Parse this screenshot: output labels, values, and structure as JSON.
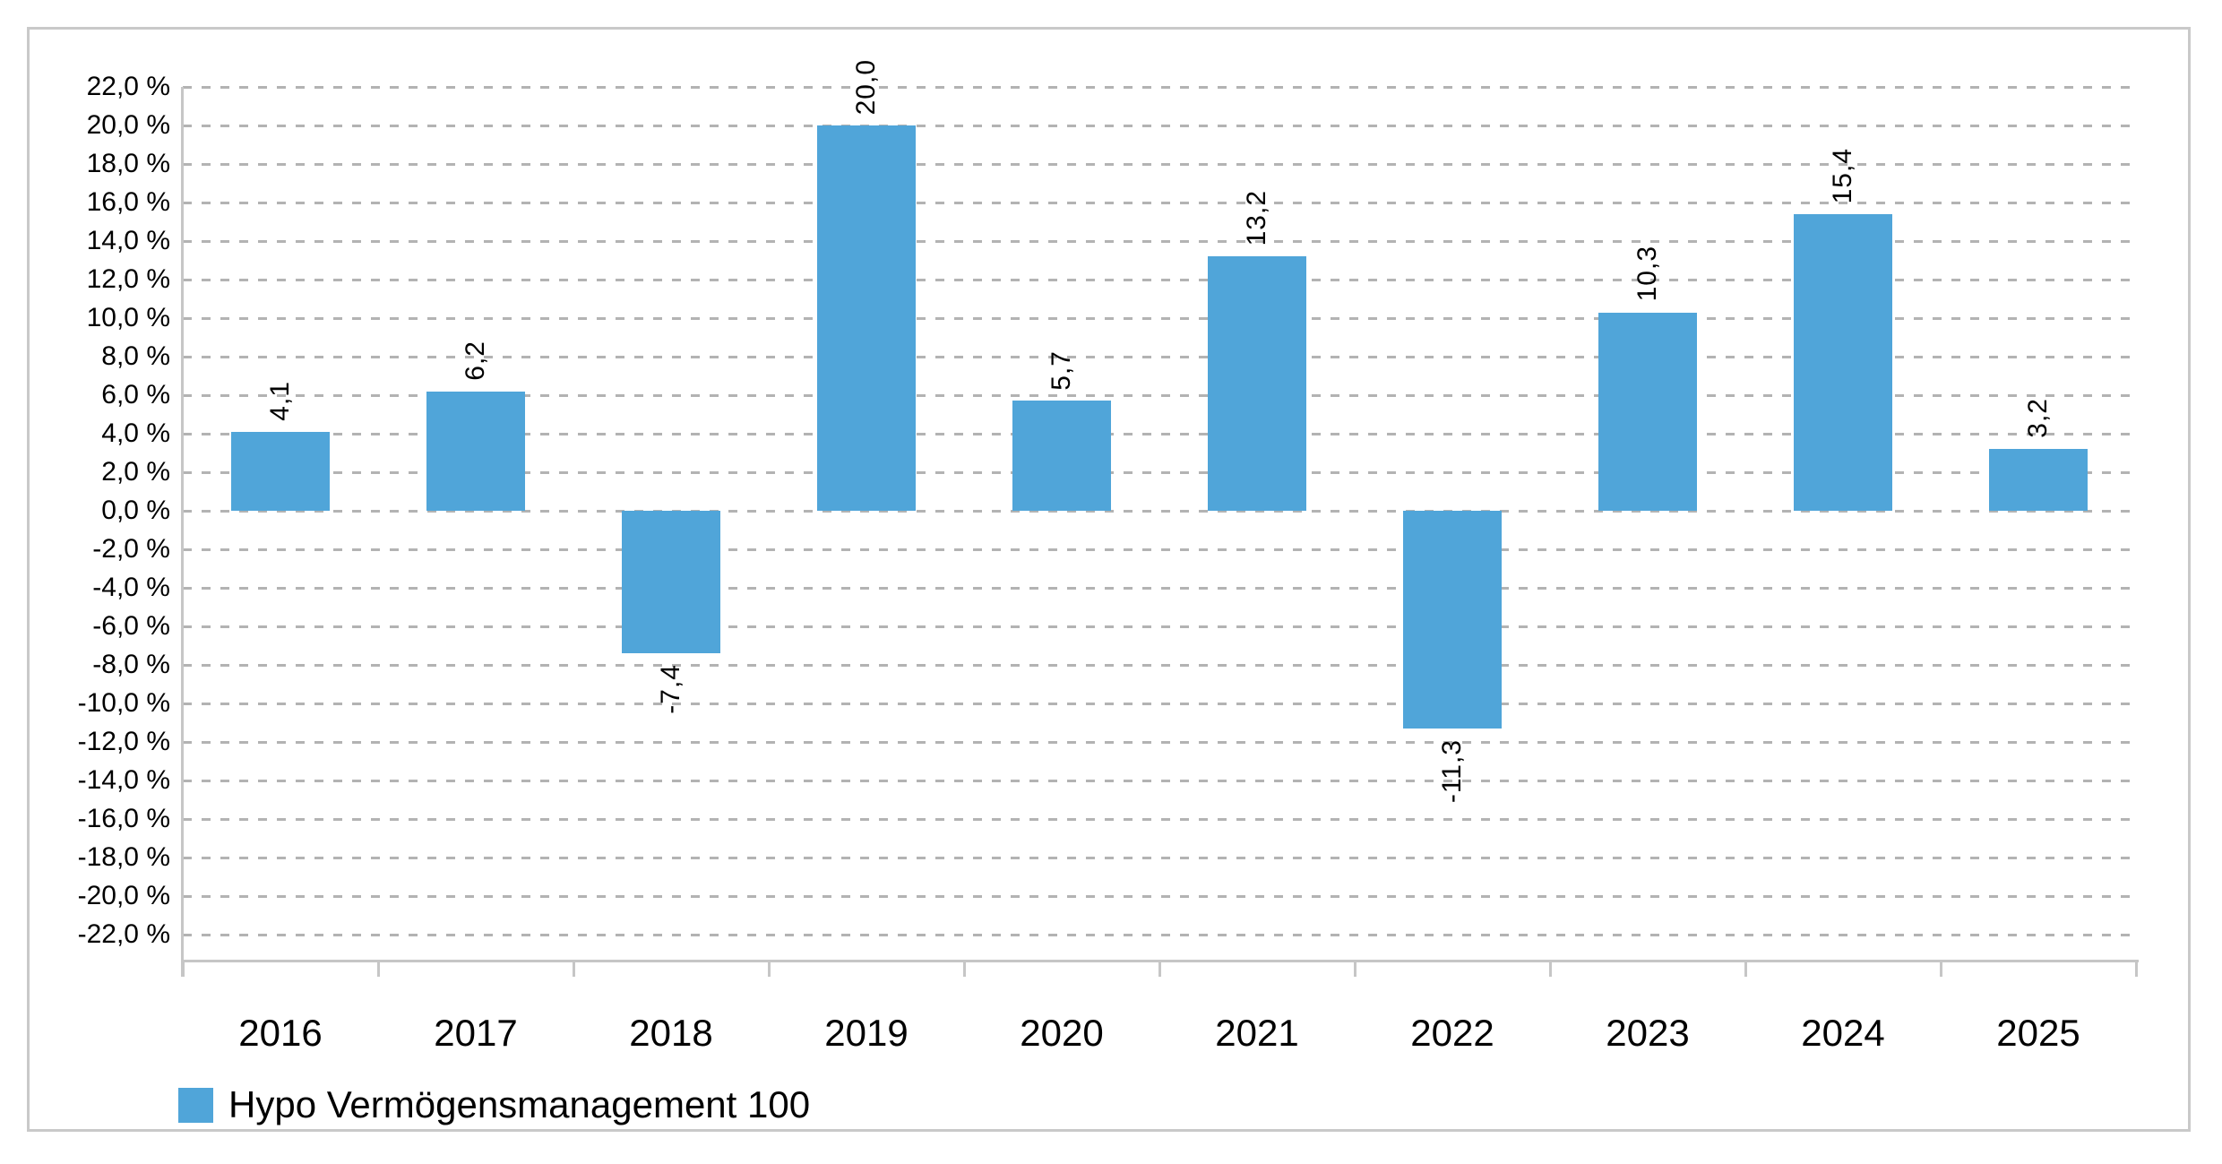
{
  "chart_data": {
    "type": "bar",
    "categories": [
      "2016",
      "2017",
      "2018",
      "2019",
      "2020",
      "2021",
      "2022",
      "2023",
      "2024",
      "2025"
    ],
    "series": [
      {
        "name": "Hypo Vermögensmanagement 100",
        "values": [
          4.1,
          6.2,
          -7.4,
          20.0,
          5.7,
          13.2,
          -11.3,
          10.3,
          15.4,
          3.2
        ],
        "color": "#50A5D9"
      }
    ],
    "value_labels": [
      "4,1",
      "6,2",
      "-7,4",
      "20,0",
      "5,7",
      "13,2",
      "-11,3",
      "10,3",
      "15,4",
      "3,2"
    ],
    "value_label_rotation_deg": -90,
    "y_axis": {
      "min": -22,
      "max": 22,
      "step": 2,
      "tick_labels": [
        "22,0 %",
        "20,0 %",
        "18,0 %",
        "16,0 %",
        "14,0 %",
        "12,0 %",
        "10,0 %",
        "8,0 %",
        "6,0 %",
        "4,0 %",
        "2,0 %",
        "0,0 %",
        "-2,0 %",
        "-4,0 %",
        "-6,0 %",
        "-8,0 %",
        "-10,0 %",
        "-12,0 %",
        "-14,0 %",
        "-16,0 %",
        "-18,0 %",
        "-20,0 %",
        "-22,0 %"
      ]
    },
    "xlabel": "",
    "ylabel": "",
    "grid": "dashed-horizontal",
    "legend": {
      "position": "bottom-left",
      "items": [
        {
          "label": "Hypo Vermögensmanagement 100",
          "color": "#50A5D9"
        }
      ]
    }
  }
}
